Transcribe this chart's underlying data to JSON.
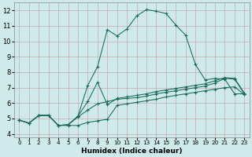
{
  "xlabel": "Humidex (Indice chaleur)",
  "xlim": [
    -0.5,
    23.5
  ],
  "ylim": [
    3.8,
    12.5
  ],
  "xticks": [
    0,
    1,
    2,
    3,
    4,
    5,
    6,
    7,
    8,
    9,
    10,
    11,
    12,
    13,
    14,
    15,
    16,
    17,
    18,
    19,
    20,
    21,
    22,
    23
  ],
  "yticks": [
    4,
    5,
    6,
    7,
    8,
    9,
    10,
    11,
    12
  ],
  "bg_color": "#ceeaea",
  "grid_color": "#c8aaaa",
  "line_color": "#1a6b5a",
  "line1_x": [
    0,
    1,
    2,
    3,
    4,
    5,
    6,
    7,
    8,
    9,
    10,
    11,
    12,
    13,
    14,
    15,
    16,
    17,
    18,
    19,
    20,
    21,
    22,
    23
  ],
  "line1_y": [
    4.9,
    4.7,
    5.2,
    5.2,
    4.55,
    4.55,
    4.55,
    4.75,
    4.85,
    4.95,
    5.85,
    5.95,
    6.05,
    6.15,
    6.25,
    6.4,
    6.5,
    6.6,
    6.7,
    6.8,
    6.9,
    7.0,
    7.05,
    6.55
  ],
  "line2_x": [
    0,
    1,
    2,
    3,
    4,
    5,
    6,
    7,
    8,
    9,
    10,
    11,
    12,
    13,
    14,
    15,
    16,
    17,
    18,
    19,
    20,
    21,
    22,
    23
  ],
  "line2_y": [
    4.9,
    4.7,
    5.2,
    5.2,
    4.55,
    4.6,
    5.1,
    5.55,
    5.95,
    6.1,
    6.25,
    6.3,
    6.35,
    6.45,
    6.6,
    6.7,
    6.8,
    6.9,
    7.0,
    7.1,
    7.3,
    7.6,
    7.55,
    6.6
  ],
  "line3_x": [
    0,
    1,
    2,
    3,
    4,
    5,
    6,
    7,
    8,
    9,
    10,
    11,
    12,
    13,
    14,
    15,
    16,
    17,
    18,
    19,
    20,
    21,
    22,
    23
  ],
  "line3_y": [
    4.9,
    4.7,
    5.2,
    5.2,
    4.55,
    4.6,
    5.15,
    6.1,
    7.35,
    5.9,
    6.3,
    6.4,
    6.5,
    6.6,
    6.75,
    6.85,
    6.95,
    7.05,
    7.15,
    7.25,
    7.45,
    7.65,
    7.6,
    6.65
  ],
  "line4_x": [
    0,
    1,
    2,
    3,
    4,
    5,
    6,
    7,
    8,
    9,
    10,
    11,
    12,
    13,
    14,
    15,
    16,
    17,
    18,
    19,
    20,
    21,
    22,
    23
  ],
  "line4_y": [
    4.9,
    4.7,
    5.2,
    5.2,
    4.55,
    4.6,
    5.15,
    7.15,
    8.35,
    10.75,
    10.35,
    10.8,
    11.65,
    12.05,
    11.95,
    11.8,
    11.05,
    10.4,
    8.5,
    7.5,
    7.6,
    7.55,
    6.6,
    6.6
  ]
}
